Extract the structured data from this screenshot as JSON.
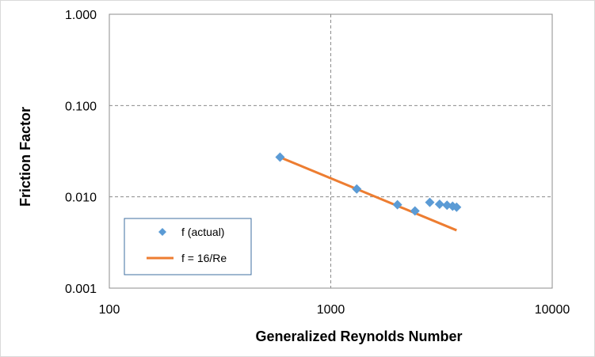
{
  "chart_data": {
    "type": "scatter",
    "xlabel": "Generalized Reynolds Number",
    "ylabel": "Friction Factor",
    "xscale": "log",
    "yscale": "log",
    "xlim": [
      100,
      10000
    ],
    "ylim": [
      0.001,
      1
    ],
    "x_ticks": [
      "100",
      "1000",
      "10000"
    ],
    "y_ticks": [
      "1.000",
      "0.100",
      "0.010",
      "0.001"
    ],
    "grid": "major, dashed",
    "legend_position": "bottom-left",
    "series": [
      {
        "name": "f (actual)",
        "kind": "markers",
        "marker": "diamond",
        "color": "#5b9bd5",
        "x": [
          590,
          1310,
          2000,
          2400,
          2800,
          3100,
          3350,
          3550,
          3700
        ],
        "y": [
          0.0272,
          0.0122,
          0.0082,
          0.007,
          0.0087,
          0.0083,
          0.0081,
          0.0079,
          0.0077
        ]
      },
      {
        "name": "f = 16/Re",
        "kind": "line",
        "color": "#ed7d31",
        "x": [
          590,
          3700
        ],
        "y": [
          0.0271,
          0.0043
        ]
      }
    ]
  }
}
